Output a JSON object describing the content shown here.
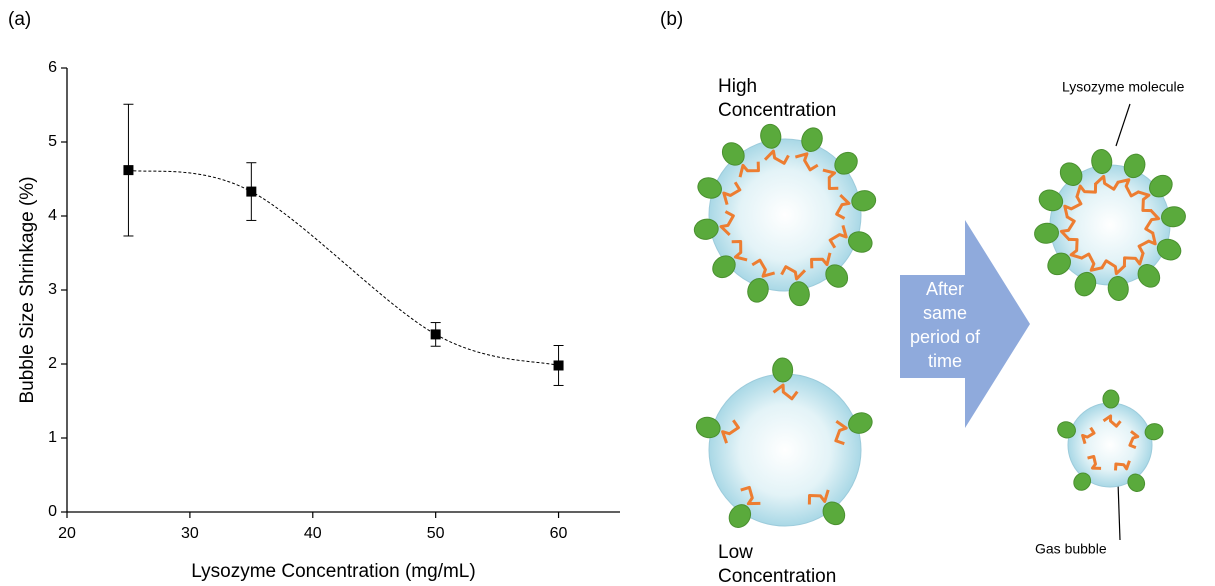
{
  "panels": [
    "(a)",
    "(b)"
  ],
  "chart_data": {
    "type": "scatter",
    "xlabel": "Lysozyme Concentration (mg/mL)",
    "ylabel": "Bubble Size Shrinkage (%)",
    "x": [
      25,
      35,
      50,
      60
    ],
    "values": [
      4.62,
      4.33,
      2.4,
      1.98
    ],
    "errors": [
      0.89,
      0.39,
      0.16,
      0.27
    ],
    "color": "#000000",
    "xlim": [
      20,
      65
    ],
    "xticks": [
      20,
      30,
      40,
      50,
      60
    ],
    "ylim": [
      0,
      6
    ],
    "yticks": [
      0,
      1,
      2,
      3,
      4,
      5,
      6
    ]
  },
  "diagram": {
    "high_label": [
      "High",
      "Concentration"
    ],
    "low_label": [
      "Low",
      "Concentration"
    ],
    "arrow_label": [
      "After",
      "same",
      "period of",
      "time"
    ],
    "molecule_label": "Lysozyme molecule",
    "bubble_label": "Gas bubble"
  }
}
